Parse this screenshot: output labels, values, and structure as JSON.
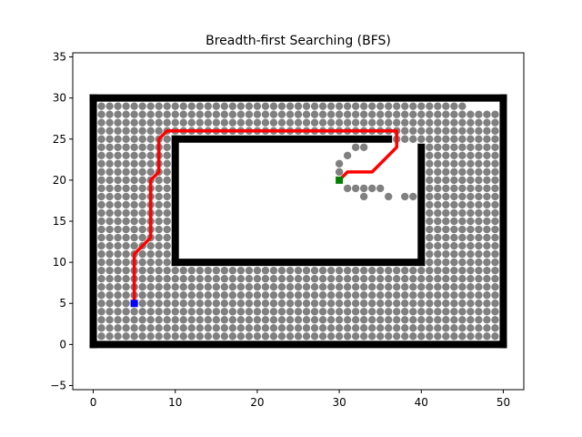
{
  "chart_data": {
    "type": "scatter",
    "title": "Breadth-first Searching (BFS)",
    "xlabel": "",
    "ylabel": "",
    "xlim": [
      -2.5,
      52.5
    ],
    "ylim": [
      -5.5,
      35.5
    ],
    "xticks": [
      0,
      10,
      20,
      30,
      40,
      50
    ],
    "yticks": [
      -5,
      0,
      5,
      10,
      15,
      20,
      25,
      30,
      35
    ],
    "grid": false,
    "legend": "none",
    "colors": {
      "obstacle": "#000000",
      "visited": "#808080",
      "path": "#ff0000",
      "start": "#0000ff",
      "goal": "#008000"
    },
    "obstacles": {
      "outer_bounds": [
        0,
        50,
        0,
        30
      ],
      "walls": [
        {
          "x": [
            10,
            10
          ],
          "y": [
            10,
            25
          ]
        },
        {
          "x": [
            10,
            40
          ],
          "y": [
            10,
            10
          ]
        },
        {
          "x": [
            40,
            40
          ],
          "y": [
            10,
            24
          ]
        },
        {
          "x": [
            10,
            36
          ],
          "y": [
            25,
            25
          ]
        }
      ]
    },
    "visited_region": {
      "note": "all free cells explored except these unexplored cells",
      "unexplored_top_right": [
        [
          46,
          29
        ],
        [
          47,
          29
        ],
        [
          48,
          29
        ],
        [
          49,
          29
        ]
      ],
      "unexplored_near_goal_rows": {
        "24": [
          31,
          32,
          33,
          34,
          35,
          36,
          37,
          38,
          39
        ],
        "23": [
          31,
          32,
          33,
          34,
          35,
          36,
          37,
          38,
          39
        ],
        "22": [
          31,
          32,
          33,
          34,
          35,
          36,
          37,
          38,
          39
        ],
        "21": [
          31,
          32,
          33,
          34,
          35,
          36,
          37,
          38,
          39
        ],
        "20": [
          31,
          32,
          33,
          34,
          35,
          36,
          37,
          38,
          39
        ],
        "19": [
          36,
          37,
          38,
          39
        ],
        "18": [
          36,
          37,
          38,
          39
        ],
        "17": [
          30,
          31,
          32,
          33,
          34,
          35,
          36,
          37,
          38,
          39
        ],
        "16": [
          30,
          31,
          32,
          33,
          34,
          35,
          36,
          37,
          38,
          39
        ]
      },
      "unexplored_near_goal_extra": [
        [
          30,
          18
        ],
        [
          31,
          18
        ],
        [
          32,
          18
        ],
        [
          33,
          18
        ],
        [
          34,
          18
        ],
        [
          35,
          18
        ],
        [
          30,
          19
        ],
        [
          31,
          19
        ],
        [
          32,
          19
        ],
        [
          33,
          19
        ],
        [
          34,
          19
        ],
        [
          35,
          19
        ]
      ],
      "visited_added": [
        [
          30,
          22
        ],
        [
          30,
          21
        ],
        [
          31,
          23
        ],
        [
          32,
          24
        ],
        [
          33,
          24
        ],
        [
          31,
          19
        ],
        [
          32,
          19
        ],
        [
          33,
          19
        ],
        [
          34,
          19
        ],
        [
          35,
          19
        ],
        [
          33,
          18
        ],
        [
          38,
          18
        ],
        [
          39,
          18
        ],
        [
          36,
          18
        ]
      ]
    },
    "path": {
      "x": [
        5,
        5,
        7,
        7,
        8,
        8,
        9,
        37,
        37,
        34,
        31,
        30
      ],
      "y": [
        5,
        11,
        13,
        20,
        21,
        25,
        26,
        26,
        24,
        21,
        21,
        20
      ]
    },
    "start": [
      5,
      5
    ],
    "goal": [
      30,
      20
    ]
  }
}
